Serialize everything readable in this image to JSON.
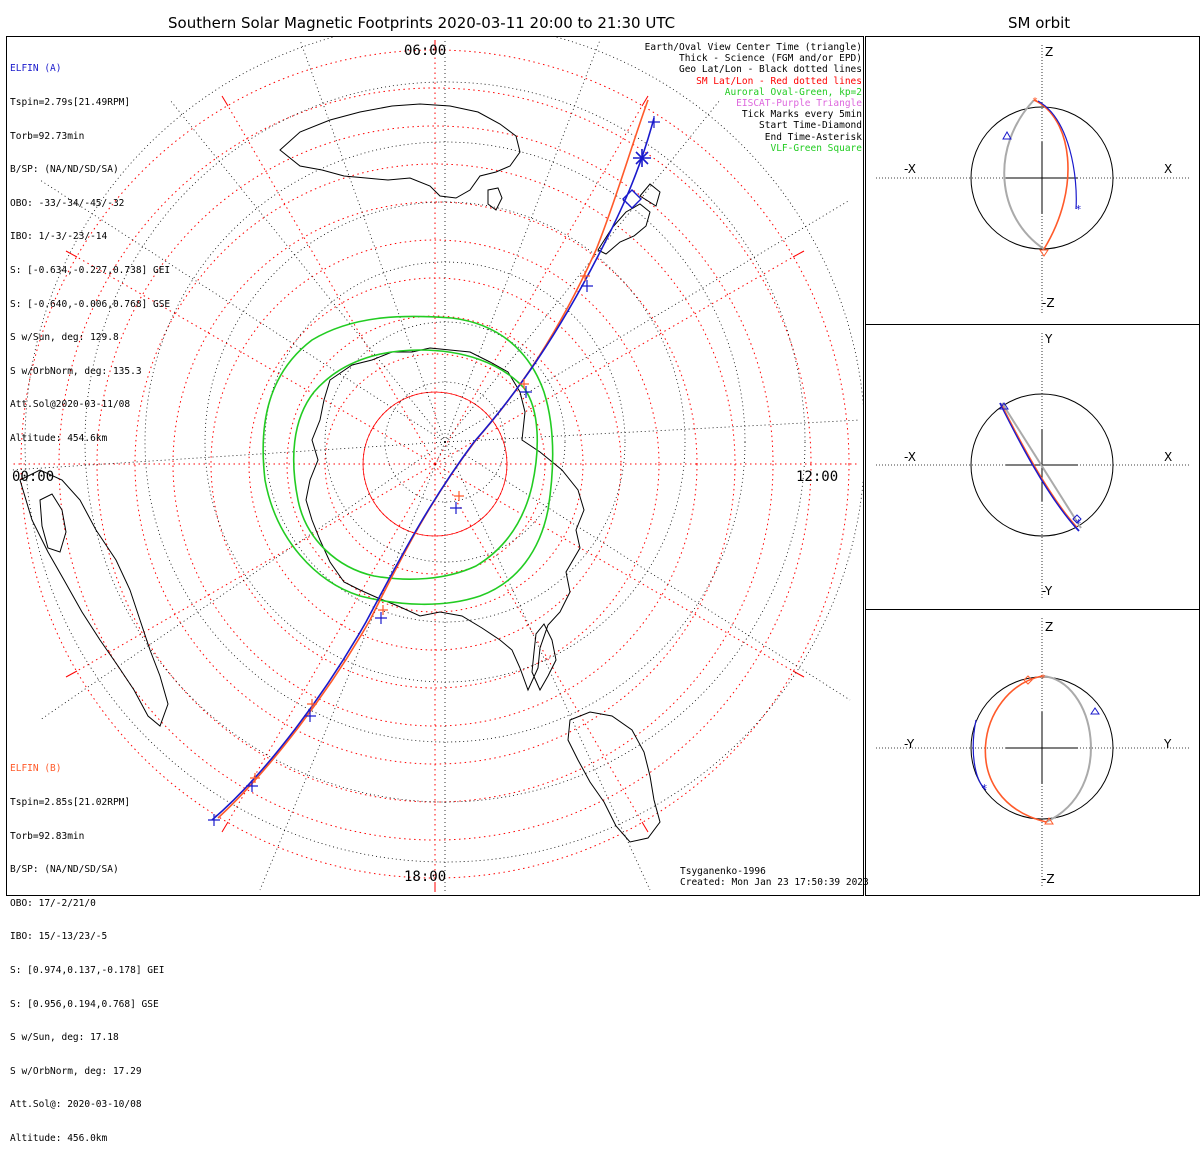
{
  "title": "Southern Solar Magnetic Footprints 2020-03-11 20:00 to 21:30 UTC",
  "sm_orbit_title": "SM orbit",
  "local_times": {
    "top": "06:00",
    "left": "00:00",
    "right": "12:00",
    "bottom": "18:00"
  },
  "elfin_a": {
    "header": "ELFIN (A)",
    "color": "#1a1acc",
    "lines": [
      "Tspin=2.79s[21.49RPM]",
      "Torb=92.73min",
      "B/SP: (NA/ND/SD/SA)",
      "OBO: -33/-34/-45/-32",
      "IBO: 1/-3/-23/-14",
      "S: [-0.634,-0.227,0.738] GEI",
      "S: [-0.640,-0.006,0.768] GSE",
      "S w/Sun, deg: 129.8",
      "S w/OrbNorm, deg: 135.3",
      "Att.Sol@2020-03-11/08",
      "Altitude: 454.6km"
    ]
  },
  "elfin_b": {
    "header": "ELFIN (B)",
    "color": "#ff5a2a",
    "lines": [
      "Tspin=2.85s[21.02RPM]",
      "Torb=92.83min",
      "B/SP: (NA/ND/SD/SA)",
      "OBO: 17/-2/21/0",
      "IBO: 15/-13/23/-5",
      "S: [0.974,0.137,-0.178] GEI",
      "S: [0.956,0.194,0.768] GSE",
      "S w/Sun, deg: 17.18",
      "S w/OrbNorm, deg: 17.29",
      "Att.Sol@: 2020-03-10/08",
      "Altitude: 456.0km"
    ]
  },
  "legend": [
    {
      "text": "Earth/Oval View Center Time (triangle)",
      "color": "#000000"
    },
    {
      "text": "Thick - Science (FGM and/or EPD)",
      "color": "#000000"
    },
    {
      "text": "Geo Lat/Lon - Black dotted lines",
      "color": "#000000"
    },
    {
      "text": "SM Lat/Lon - Red dotted lines",
      "color": "#ff0000"
    },
    {
      "text": "Auroral Oval-Green, kp=2",
      "color": "#22cc22"
    },
    {
      "text": "EISCAT-Purple Triangle",
      "color": "#dd66dd"
    },
    {
      "text": "Tick Marks every 5min",
      "color": "#000000"
    },
    {
      "text": "Start Time-Diamond",
      "color": "#000000"
    },
    {
      "text": "End Time-Asterisk",
      "color": "#000000"
    },
    {
      "text": "VLF-Green Square",
      "color": "#22cc22"
    }
  ],
  "credit": {
    "model": "Tsyganenko-1996",
    "created": "Created: Mon Jan 23 17:50:39 2023"
  },
  "panels": [
    {
      "name": "xz",
      "top_label": "Z",
      "bottom_label": "-Z",
      "left_label": "-X",
      "right_label": "X"
    },
    {
      "name": "xy",
      "top_label": "Y",
      "bottom_label": "-Y",
      "left_label": "-X",
      "right_label": "X"
    },
    {
      "name": "yz",
      "top_label": "Z",
      "bottom_label": "-Z",
      "left_label": "-Y",
      "right_label": "Y"
    }
  ],
  "colors": {
    "elfin_a": "#1a1acc",
    "elfin_b": "#ff5a2a",
    "oval": "#22cc22",
    "sm_grid": "#ff0000",
    "geo_grid": "#000000"
  }
}
